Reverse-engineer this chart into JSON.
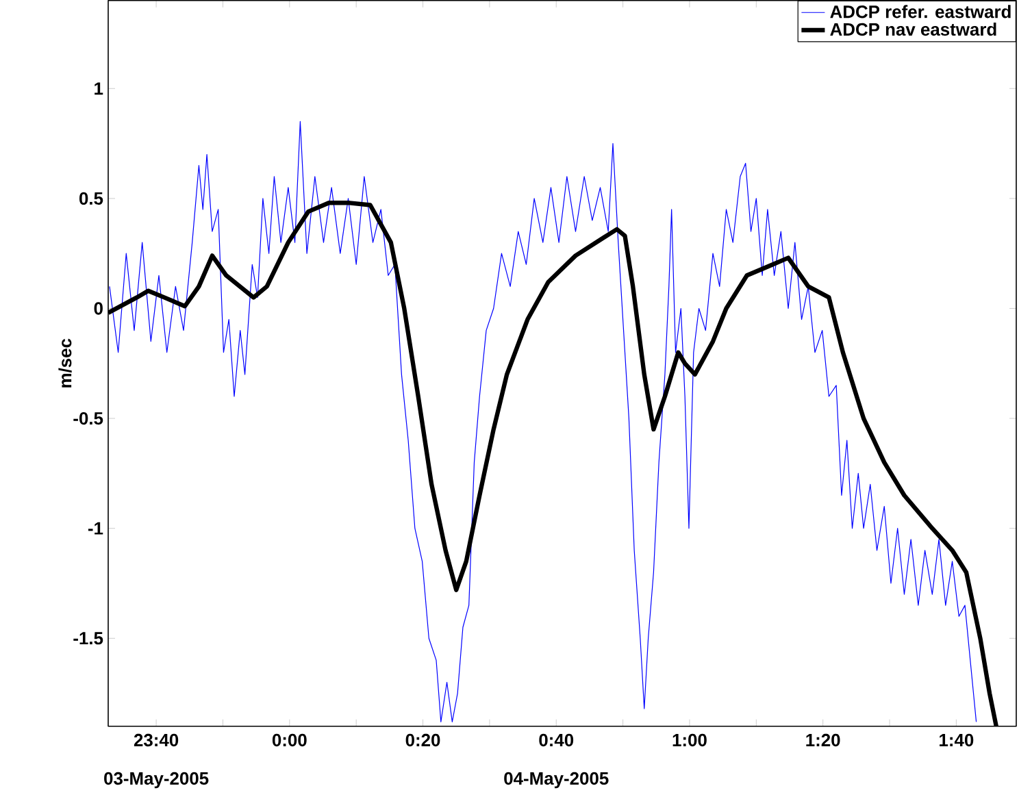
{
  "chart_data": {
    "type": "line",
    "ylabel": "m/sec",
    "xlim": [
      "2005-05-03T23:32:48",
      "2005-05-04T01:49:00"
    ],
    "ylim": [
      -1.9,
      1.4
    ],
    "xticks": [
      {
        "value": "2005-05-03T23:40",
        "label": "23:40"
      },
      {
        "value": "2005-05-03T23:50",
        "label": null
      },
      {
        "value": "2005-05-04T00:00",
        "label": "0:00"
      },
      {
        "value": "2005-05-04T00:10",
        "label": null
      },
      {
        "value": "2005-05-04T00:20",
        "label": "0:20"
      },
      {
        "value": "2005-05-04T00:30",
        "label": null
      },
      {
        "value": "2005-05-04T00:40",
        "label": "0:40"
      },
      {
        "value": "2005-05-04T00:50",
        "label": null
      },
      {
        "value": "2005-05-04T01:00",
        "label": "1:00"
      },
      {
        "value": "2005-05-04T01:10",
        "label": null
      },
      {
        "value": "2005-05-04T01:20",
        "label": "1:20"
      },
      {
        "value": "2005-05-04T01:30",
        "label": null
      },
      {
        "value": "2005-05-04T01:40",
        "label": "1:40"
      }
    ],
    "yticks": [
      -1.5,
      -1,
      -0.5,
      0,
      0.5,
      1
    ],
    "annotations": [
      "03-May-2005",
      "04-May-2005"
    ],
    "grid": false,
    "legend": "top right",
    "series": [
      {
        "name": "ADCP refer. eastward",
        "color": "#0000ff",
        "x": [
          "2005-05-03T23:33:00",
          "2005-05-03T23:34:18",
          "2005-05-03T23:35:30",
          "2005-05-03T23:36:42",
          "2005-05-03T23:37:54",
          "2005-05-03T23:39:12",
          "2005-05-03T23:40:24",
          "2005-05-03T23:41:36",
          "2005-05-03T23:42:54",
          "2005-05-03T23:44:06",
          "2005-05-03T23:45:24",
          "2005-05-03T23:46:24",
          "2005-05-03T23:47:00",
          "2005-05-03T23:47:36",
          "2005-05-03T23:48:24",
          "2005-05-03T23:49:18",
          "2005-05-03T23:50:06",
          "2005-05-03T23:50:54",
          "2005-05-03T23:51:42",
          "2005-05-03T23:52:36",
          "2005-05-03T23:53:18",
          "2005-05-03T23:54:24",
          "2005-05-03T23:55:12",
          "2005-05-03T23:56:00",
          "2005-05-03T23:56:54",
          "2005-05-03T23:57:42",
          "2005-05-03T23:58:42",
          "2005-05-03T23:59:48",
          "2005-05-04T00:00:48",
          "2005-05-04T00:01:36",
          "2005-05-04T00:02:36",
          "2005-05-04T00:03:48",
          "2005-05-04T00:05:06",
          "2005-05-04T00:06:18",
          "2005-05-04T00:07:36",
          "2005-05-04T00:08:48",
          "2005-05-04T00:10:00",
          "2005-05-04T00:11:12",
          "2005-05-04T00:12:30",
          "2005-05-04T00:13:42",
          "2005-05-04T00:14:48",
          "2005-05-04T00:15:48",
          "2005-05-04T00:16:48",
          "2005-05-04T00:17:48",
          "2005-05-04T00:18:48",
          "2005-05-04T00:19:54",
          "2005-05-04T00:20:54",
          "2005-05-04T00:22:00",
          "2005-05-04T00:22:42",
          "2005-05-04T00:23:36",
          "2005-05-04T00:24:24",
          "2005-05-04T00:25:12",
          "2005-05-04T00:26:00",
          "2005-05-04T00:26:54",
          "2005-05-04T00:27:42",
          "2005-05-04T00:28:30",
          "2005-05-04T00:29:30",
          "2005-05-04T00:30:36",
          "2005-05-04T00:31:48",
          "2005-05-04T00:33:06",
          "2005-05-04T00:34:18",
          "2005-05-04T00:35:30",
          "2005-05-04T00:36:42",
          "2005-05-04T00:38:00",
          "2005-05-04T00:39:12",
          "2005-05-04T00:40:24",
          "2005-05-04T00:41:36",
          "2005-05-04T00:42:54",
          "2005-05-04T00:44:12",
          "2005-05-04T00:45:24",
          "2005-05-04T00:46:36",
          "2005-05-04T00:47:48",
          "2005-05-04T00:48:30",
          "2005-05-04T00:49:18",
          "2005-05-04T00:50:06",
          "2005-05-04T00:50:54",
          "2005-05-04T00:51:42",
          "2005-05-04T00:52:36",
          "2005-05-04T00:53:12",
          "2005-05-04T00:53:48",
          "2005-05-04T00:54:36",
          "2005-05-04T00:55:24",
          "2005-05-04T00:56:18",
          "2005-05-04T00:56:54",
          "2005-05-04T00:57:18",
          "2005-05-04T00:57:54",
          "2005-05-04T00:58:42",
          "2005-05-04T00:59:18",
          "2005-05-04T00:59:54",
          "2005-05-04T01:00:36",
          "2005-05-04T01:01:24",
          "2005-05-04T01:02:24",
          "2005-05-04T01:03:30",
          "2005-05-04T01:04:30",
          "2005-05-04T01:05:30",
          "2005-05-04T01:06:30",
          "2005-05-04T01:07:36",
          "2005-05-04T01:08:24",
          "2005-05-04T01:09:12",
          "2005-05-04T01:10:00",
          "2005-05-04T01:10:54",
          "2005-05-04T01:11:42",
          "2005-05-04T01:12:42",
          "2005-05-04T01:13:42",
          "2005-05-04T01:14:48",
          "2005-05-04T01:15:48",
          "2005-05-04T01:16:48",
          "2005-05-04T01:17:48",
          "2005-05-04T01:18:48",
          "2005-05-04T01:19:54",
          "2005-05-04T01:20:54",
          "2005-05-04T01:22:00",
          "2005-05-04T01:22:48",
          "2005-05-04T01:23:36",
          "2005-05-04T01:24:24",
          "2005-05-04T01:25:18",
          "2005-05-04T01:26:06",
          "2005-05-04T01:27:06",
          "2005-05-04T01:28:06",
          "2005-05-04T01:29:12",
          "2005-05-04T01:30:12",
          "2005-05-04T01:31:12",
          "2005-05-04T01:32:12",
          "2005-05-04T01:33:12",
          "2005-05-04T01:34:18",
          "2005-05-04T01:35:18",
          "2005-05-04T01:36:24",
          "2005-05-04T01:37:24",
          "2005-05-04T01:38:24",
          "2005-05-04T01:39:24",
          "2005-05-04T01:40:24",
          "2005-05-04T01:41:18",
          "2005-05-04T01:42:06",
          "2005-05-04T01:43:00"
        ],
        "values": [
          0.1,
          -0.2,
          0.25,
          -0.1,
          0.3,
          -0.15,
          0.15,
          -0.2,
          0.1,
          -0.1,
          0.3,
          0.65,
          0.45,
          0.7,
          0.35,
          0.45,
          -0.2,
          -0.05,
          -0.4,
          -0.1,
          -0.3,
          0.2,
          0.05,
          0.5,
          0.25,
          0.6,
          0.3,
          0.55,
          0.3,
          0.85,
          0.25,
          0.6,
          0.3,
          0.55,
          0.25,
          0.5,
          0.2,
          0.6,
          0.3,
          0.45,
          0.15,
          0.2,
          -0.3,
          -0.6,
          -1.0,
          -1.15,
          -1.5,
          -1.6,
          -1.88,
          -1.7,
          -1.88,
          -1.75,
          -1.45,
          -1.35,
          -0.7,
          -0.4,
          -0.1,
          0.0,
          0.25,
          0.1,
          0.35,
          0.2,
          0.5,
          0.3,
          0.55,
          0.3,
          0.6,
          0.35,
          0.6,
          0.4,
          0.55,
          0.35,
          0.75,
          0.3,
          -0.1,
          -0.5,
          -1.1,
          -1.5,
          -1.82,
          -1.5,
          -1.2,
          -0.7,
          -0.3,
          0.1,
          0.45,
          -0.2,
          0.0,
          -0.4,
          -1.0,
          -0.2,
          0.0,
          -0.1,
          0.25,
          0.1,
          0.45,
          0.3,
          0.6,
          0.66,
          0.35,
          0.5,
          0.15,
          0.45,
          0.15,
          0.35,
          0.0,
          0.3,
          -0.05,
          0.1,
          -0.2,
          -0.1,
          -0.4,
          -0.35,
          -0.85,
          -0.6,
          -1.0,
          -0.75,
          -1.0,
          -0.8,
          -1.1,
          -0.9,
          -1.25,
          -1.0,
          -1.3,
          -1.05,
          -1.35,
          -1.1,
          -1.3,
          -1.05,
          -1.35,
          -1.15,
          -1.4,
          -1.35,
          -1.6,
          -1.88
        ]
      },
      {
        "name": "ADCP nav eastward",
        "color": "#000000",
        "x": [
          "2005-05-03T23:32:48",
          "2005-05-03T23:37:06",
          "2005-05-03T23:38:48",
          "2005-05-03T23:41:12",
          "2005-05-03T23:44:18",
          "2005-05-03T23:46:24",
          "2005-05-03T23:48:24",
          "2005-05-03T23:50:30",
          "2005-05-03T23:54:36",
          "2005-05-03T23:56:36",
          "2005-05-03T23:59:48",
          "2005-05-04T00:02:48",
          "2005-05-04T00:05:54",
          "2005-05-04T00:09:00",
          "2005-05-04T00:12:06",
          "2005-05-04T00:15:12",
          "2005-05-04T00:17:12",
          "2005-05-04T00:19:18",
          "2005-05-04T00:21:18",
          "2005-05-04T00:23:24",
          "2005-05-04T00:25:00",
          "2005-05-04T00:26:30",
          "2005-05-04T00:28:30",
          "2005-05-04T00:30:36",
          "2005-05-04T00:32:36",
          "2005-05-04T00:35:42",
          "2005-05-04T00:38:48",
          "2005-05-04T00:42:54",
          "2005-05-04T00:47:00",
          "2005-05-04T00:49:06",
          "2005-05-04T00:50:18",
          "2005-05-04T00:51:30",
          "2005-05-04T00:53:12",
          "2005-05-04T00:54:36",
          "2005-05-04T00:56:18",
          "2005-05-04T00:58:18",
          "2005-05-04T00:59:18",
          "2005-05-04T01:00:48",
          "2005-05-04T01:03:30",
          "2005-05-04T01:05:30",
          "2005-05-04T01:08:36",
          "2005-05-04T01:11:42",
          "2005-05-04T01:14:48",
          "2005-05-04T01:17:48",
          "2005-05-04T01:20:54",
          "2005-05-04T01:23:00",
          "2005-05-04T01:26:06",
          "2005-05-04T01:29:12",
          "2005-05-04T01:32:12",
          "2005-05-04T01:36:24",
          "2005-05-04T01:39:24",
          "2005-05-04T01:41:30",
          "2005-05-04T01:43:36",
          "2005-05-04T01:45:00",
          "2005-05-04T01:46:00"
        ],
        "values": [
          -0.02,
          0.05,
          0.08,
          0.05,
          0.01,
          0.1,
          0.24,
          0.15,
          0.05,
          0.1,
          0.3,
          0.44,
          0.48,
          0.48,
          0.47,
          0.3,
          0.0,
          -0.4,
          -0.8,
          -1.1,
          -1.28,
          -1.15,
          -0.85,
          -0.55,
          -0.3,
          -0.05,
          0.12,
          0.24,
          0.32,
          0.36,
          0.33,
          0.1,
          -0.3,
          -0.55,
          -0.4,
          -0.2,
          -0.25,
          -0.3,
          -0.15,
          0.0,
          0.15,
          0.19,
          0.23,
          0.1,
          0.05,
          -0.2,
          -0.5,
          -0.7,
          -0.85,
          -1.0,
          -1.1,
          -1.2,
          -1.5,
          -1.75,
          -1.9
        ]
      }
    ]
  }
}
